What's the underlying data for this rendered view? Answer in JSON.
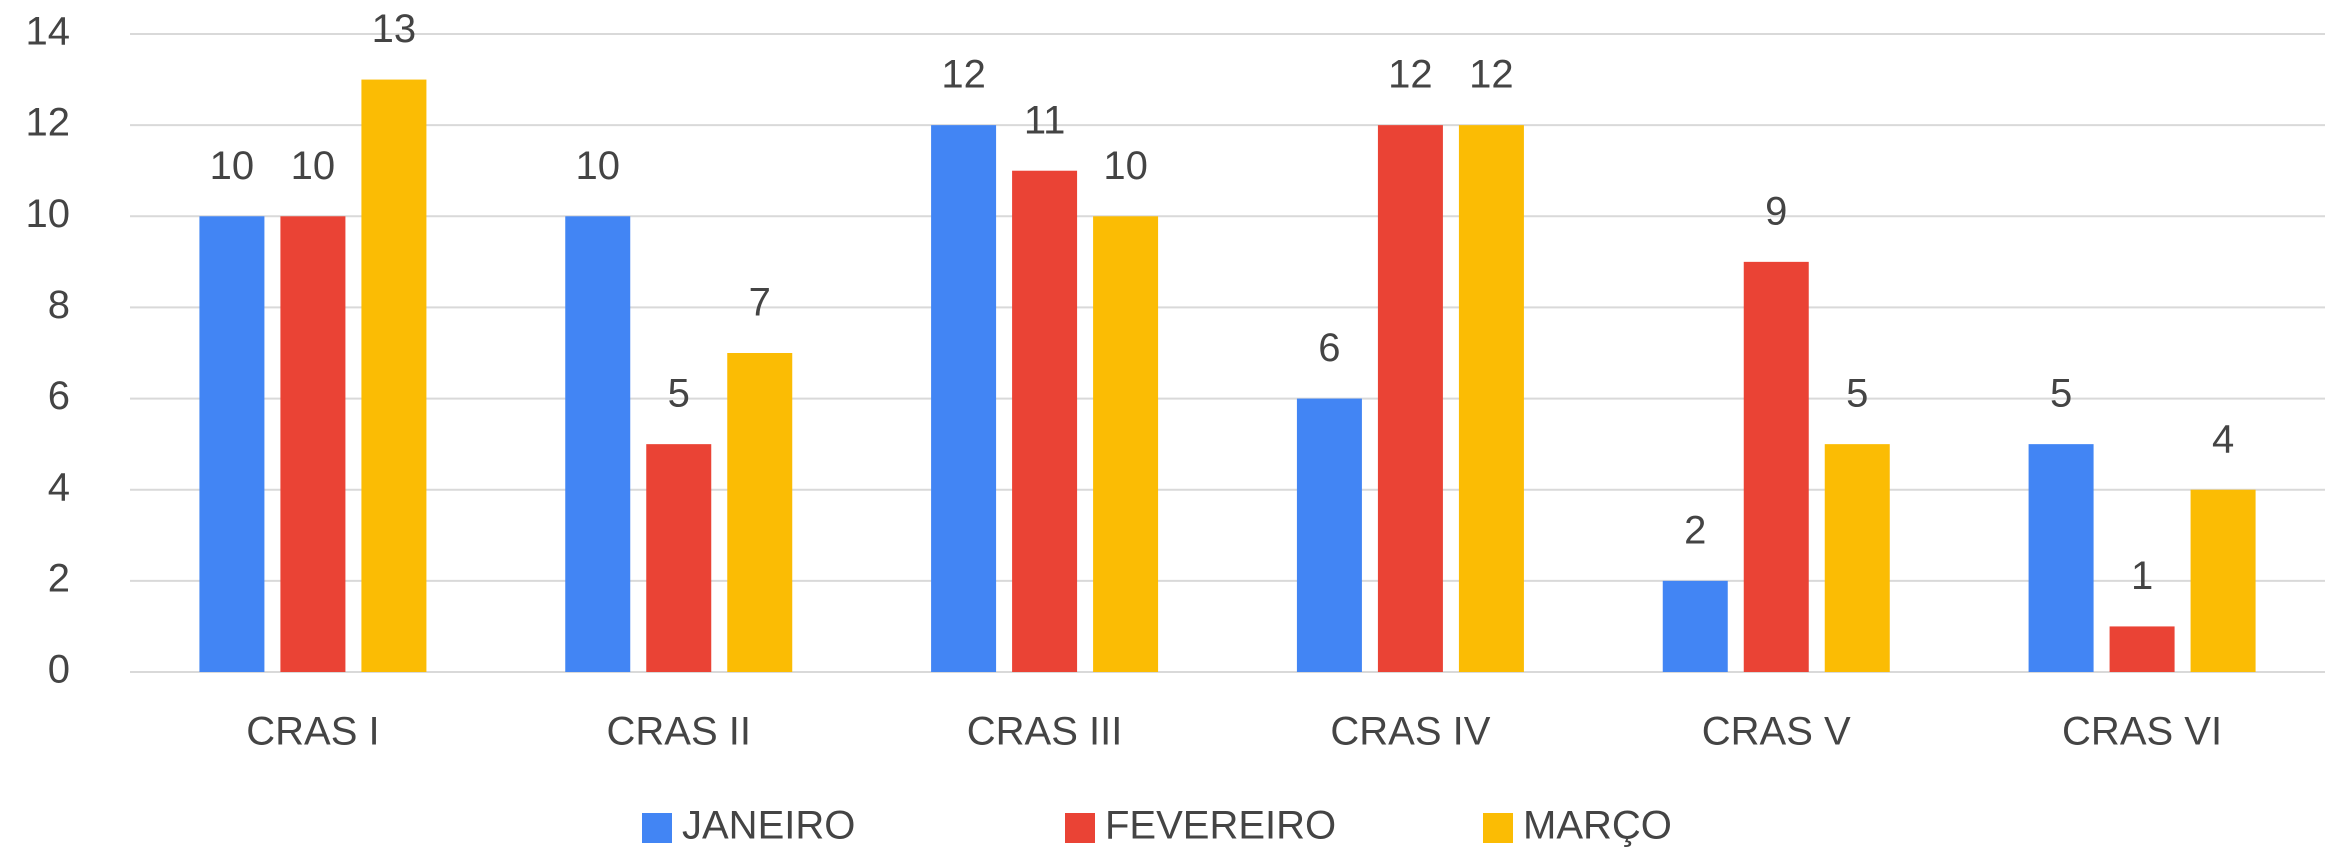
{
  "chart_data": {
    "type": "bar",
    "categories": [
      "CRAS I",
      "CRAS II",
      "CRAS III",
      "CRAS IV",
      "CRAS V",
      "CRAS VI"
    ],
    "series": [
      {
        "name": "JANEIRO",
        "color": "#4285f4",
        "values": [
          10,
          10,
          12,
          6,
          2,
          5
        ]
      },
      {
        "name": "FEVEREIRO",
        "color": "#ea4335",
        "values": [
          10,
          5,
          11,
          12,
          9,
          1
        ]
      },
      {
        "name": "MARÇO",
        "color": "#fbbc04",
        "values": [
          13,
          7,
          10,
          12,
          5,
          4
        ]
      }
    ],
    "ylim": [
      0,
      14
    ],
    "yticks": [
      0,
      2,
      4,
      6,
      8,
      10,
      12,
      14
    ],
    "grid": true,
    "legend": "bottom"
  }
}
